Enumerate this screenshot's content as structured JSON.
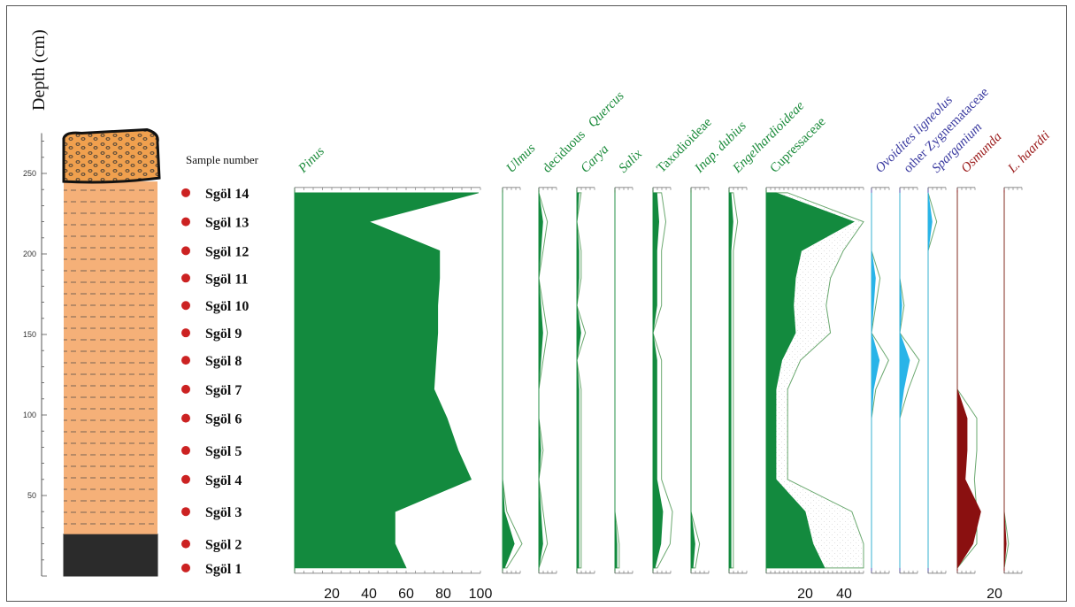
{
  "chart_data": {
    "type": "area",
    "y_axis": {
      "label": "Depth (cm)",
      "ticks": [
        50,
        100,
        150,
        200,
        250
      ],
      "range": [
        0,
        275
      ]
    },
    "sample_header": "Sample number",
    "samples": [
      {
        "name": "Sgöl 14",
        "depth": 238
      },
      {
        "name": "Sgöl 13",
        "depth": 220
      },
      {
        "name": "Sgöl 12",
        "depth": 202
      },
      {
        "name": "Sgöl 11",
        "depth": 185
      },
      {
        "name": "Sgöl 10",
        "depth": 168
      },
      {
        "name": "Sgöl 9",
        "depth": 151
      },
      {
        "name": "Sgöl 8",
        "depth": 134
      },
      {
        "name": "Sgöl 7",
        "depth": 116
      },
      {
        "name": "Sgöl 6",
        "depth": 98
      },
      {
        "name": "Sgöl 5",
        "depth": 78
      },
      {
        "name": "Sgöl 4",
        "depth": 60
      },
      {
        "name": "Sgöl 3",
        "depth": 40
      },
      {
        "name": "Sgöl 2",
        "depth": 20
      },
      {
        "name": "Sgöl 1",
        "depth": 5
      }
    ],
    "lithology": [
      {
        "from": 0,
        "to": 26,
        "color": "#2b2b2b"
      },
      {
        "from": 26,
        "to": 245,
        "color": "#f5b078"
      },
      {
        "from": 245,
        "to": 275,
        "color": "#f0a04e"
      }
    ],
    "colors": {
      "green": "#138a3e",
      "blue": "#29b4e8",
      "darkred": "#8a1010",
      "taxon_green": "#1a8a3a",
      "taxon_blue": "#3a3aa0",
      "taxon_red": "#9a1a1a",
      "sample_dot": "#cc2222"
    },
    "x_axis_bottom": {
      "pinus_ticks": [
        20,
        40,
        60,
        80,
        100
      ],
      "cupressaceae_ticks": [
        20,
        40
      ],
      "lhaardti_ticks": [
        20
      ]
    },
    "series": [
      {
        "name": "Pinus",
        "style": "italic",
        "color": "green",
        "scale_max": 100,
        "values": [
          99,
          40,
          78,
          78,
          77,
          77,
          76,
          75,
          82,
          88,
          95,
          54,
          54,
          60
        ]
      },
      {
        "name": "Ulmus",
        "style": "italic",
        "color": "green",
        "scale_max": 20,
        "values": [
          0,
          0,
          0,
          0,
          0,
          0,
          0,
          0,
          0,
          0,
          0,
          1,
          6,
          1
        ]
      },
      {
        "name": "deciduous Quercus",
        "style": "mixed",
        "color": "green",
        "scale_max": 20,
        "values": [
          0,
          2,
          1,
          0,
          1,
          2,
          1,
          0,
          0,
          1,
          0,
          1,
          2,
          0
        ]
      },
      {
        "name": "Carya",
        "style": "italic",
        "color": "green",
        "scale_max": 20,
        "values": [
          1,
          0,
          1,
          1,
          0,
          2,
          0,
          1,
          1,
          1,
          1,
          1,
          1,
          1
        ]
      },
      {
        "name": "Salix",
        "style": "italic",
        "color": "green",
        "scale_max": 20,
        "values": [
          0,
          0,
          0,
          0,
          0,
          0,
          0,
          0,
          0,
          0,
          0,
          0,
          1,
          1
        ]
      },
      {
        "name": "Taxodioideae",
        "style": "normal",
        "color": "green",
        "scale_max": 20,
        "values": [
          2,
          3,
          2,
          2,
          2,
          0,
          2,
          2,
          2,
          2,
          2,
          5,
          4,
          1
        ]
      },
      {
        "name": "Inap. dubius",
        "style": "italic",
        "color": "green",
        "scale_max": 20,
        "values": [
          0,
          0,
          0,
          0,
          0,
          0,
          0,
          0,
          0,
          0,
          0,
          0,
          2,
          1
        ]
      },
      {
        "name": "Engelhardioideae",
        "style": "italic",
        "color": "green",
        "scale_max": 20,
        "values": [
          1,
          2,
          1,
          1,
          1,
          1,
          1,
          1,
          1,
          1,
          1,
          1,
          1,
          1
        ]
      },
      {
        "name": "Cupressaceae",
        "style": "normal",
        "color": "green",
        "scale_max": 100,
        "values": [
          5,
          45,
          18,
          15,
          14,
          15,
          8,
          5,
          5,
          5,
          5,
          20,
          24,
          30
        ]
      },
      {
        "name": "Ovoidites ligneolus",
        "style": "italic",
        "color": "blue",
        "scale_max": 20,
        "values": [
          0,
          0,
          0,
          2,
          1,
          0,
          4,
          1,
          0,
          0,
          0,
          0,
          0,
          0
        ]
      },
      {
        "name": "other Zygnemataceae",
        "style": "normal",
        "color": "blue",
        "scale_max": 20,
        "values": [
          0,
          0,
          0,
          0,
          1,
          0,
          5,
          2,
          0,
          0,
          0,
          0,
          0,
          0
        ]
      },
      {
        "name": "Sparganium",
        "style": "italic",
        "color": "blue",
        "scale_max": 20,
        "values": [
          0,
          2,
          0,
          0,
          0,
          0,
          0,
          0,
          0,
          0,
          0,
          0,
          0,
          0
        ]
      },
      {
        "name": "Osmunda",
        "style": "italic",
        "color": "darkred",
        "scale_max": 20,
        "values": [
          0,
          0,
          0,
          0,
          0,
          0,
          0,
          0,
          5,
          5,
          4,
          12,
          8,
          0
        ]
      },
      {
        "name": "L. haardti",
        "style": "italic",
        "color": "darkred",
        "scale_max": 20,
        "values": [
          0,
          0,
          0,
          0,
          0,
          0,
          0,
          0,
          0,
          0,
          0,
          0,
          1,
          0
        ]
      }
    ]
  }
}
